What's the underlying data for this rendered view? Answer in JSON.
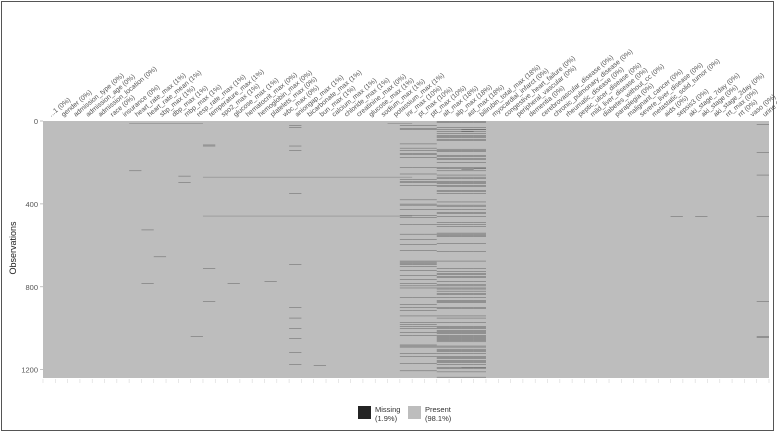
{
  "chart_data": {
    "type": "heatmap",
    "title": "",
    "xlabel": "",
    "ylabel": "Observations",
    "ylim": [
      0,
      1240
    ],
    "y_ticks": [
      0,
      400,
      800,
      1200
    ],
    "colors": {
      "missing": "#242424",
      "present": "#bdbdbd"
    },
    "legend": {
      "placement": "bottom",
      "items": [
        {
          "key": "missing",
          "label": "Missing",
          "pct": "(1.9%)"
        },
        {
          "key": "present",
          "label": "Present",
          "pct": "(98.1%)"
        }
      ]
    },
    "columns": [
      "...1 (0%)",
      "gender (0%)",
      "admission_type (0%)",
      "admission_age (0%)",
      "admission_location (0%)",
      "race (0%)",
      "insurance (0%)",
      "heart_rate_max (1%)",
      "heart_rate_mean (1%)",
      "sbp_max (1%)",
      "dbp_max (1%)",
      "mbp_max (1%)",
      "resp_rate_max (1%)",
      "temperature_max (1%)",
      "spo2_max (1%)",
      "glucose_max (1%)",
      "hematocrit_max (0%)",
      "hemoglobin_max (0%)",
      "platelets_max (0%)",
      "wbc_max (0%)",
      "aniongap_max (1%)",
      "bicarbonate_max (1%)",
      "bun_max (1%)",
      "calcium_max (1%)",
      "chloride_max (1%)",
      "creatinine_max (0%)",
      "glucose_max (1%)",
      "sodium_max (1%)",
      "potassium_max (1%)",
      "inr_max (10%)",
      "pt_max (10%)",
      "ptt_max (10%)",
      "alt_max (18%)",
      "alp_max (18%)",
      "ast_max (18%)",
      "bilirubin_total_max (18%)",
      "myocardial_infarct (0%)",
      "congestive_heart_failure (0%)",
      "peripheral_vascular (0%)",
      "dementia (0%)",
      "cerebrovascular_disease (0%)",
      "chronic_pulmonary_disease (0%)",
      "rheumatic_disease (0%)",
      "peptic_ulcer_disease (0%)",
      "mild_liver_disease (0%)",
      "diabetes_without_cc (0%)",
      "paraplegia (0%)",
      "malignant_cancer (0%)",
      "severe_liver_disease (0%)",
      "metastatic_solid_tumor (0%)",
      "aids (0%)",
      "sepsis3 (0%)",
      "aki_stage_7day (0%)",
      "aki_stage (0%)",
      "aki_stage_2day (0%)",
      "rrt_max (0%)",
      "rrt (0%)",
      "vaso (0%)",
      "urine (1%)"
    ],
    "missing_rows": [
      {
        "col": 7,
        "rows": [
          240
        ]
      },
      {
        "col": 8,
        "rows": [
          525,
          785
        ]
      },
      {
        "col": 9,
        "rows": [
          655
        ]
      },
      {
        "col": 11,
        "rows": [
          265,
          295
        ]
      },
      {
        "col": 12,
        "rows": [
          1040
        ]
      },
      {
        "col": 13,
        "rows": [
          115,
          120,
          710,
          870
        ]
      },
      {
        "col": 15,
        "rows": [
          785
        ]
      },
      {
        "col": 18,
        "rows": [
          775
        ]
      },
      {
        "col": 20,
        "rows": [
          20,
          30,
          120,
          140,
          350,
          690,
          900,
          950,
          1000,
          1050,
          1115,
          1175
        ]
      },
      {
        "col": 22,
        "rows": [
          1180
        ]
      }
    ],
    "missing_spans": [
      {
        "from": 7,
        "to": 13,
        "row": 10
      },
      {
        "from": 13,
        "to": 28,
        "row": 270
      },
      {
        "from": 13,
        "to": 28,
        "row": 458
      },
      {
        "from": 28,
        "to": 30,
        "row": 10
      },
      {
        "from": 28,
        "to": 30,
        "row": 270
      },
      {
        "from": 28,
        "to": 30,
        "row": 458
      }
    ],
    "dense_columns": [
      {
        "col": 29,
        "rate": 0.1,
        "seed": 7
      },
      {
        "col": 30,
        "rate": 0.1,
        "seed": 7
      },
      {
        "col": 31,
        "rate": 0.1,
        "seed": 7
      },
      {
        "col": 32,
        "rate": 0.18,
        "seed": 23
      },
      {
        "col": 33,
        "rate": 0.18,
        "seed": 23
      },
      {
        "col": 34,
        "rate": 0.18,
        "seed": 23
      },
      {
        "col": 35,
        "rate": 0.18,
        "seed": 23
      }
    ],
    "extra_missing": [
      {
        "col": 51,
        "rows": [
          460
        ]
      },
      {
        "col": 53,
        "rows": [
          460
        ]
      },
      {
        "col": 58,
        "rows": [
          15,
          150,
          260,
          460,
          870,
          1040,
          1045
        ]
      },
      {
        "col": 34,
        "rows": [
          40,
          50,
          235,
          1190
        ]
      },
      {
        "col": 35,
        "rows": [
          40,
          230,
          1190
        ]
      }
    ]
  }
}
